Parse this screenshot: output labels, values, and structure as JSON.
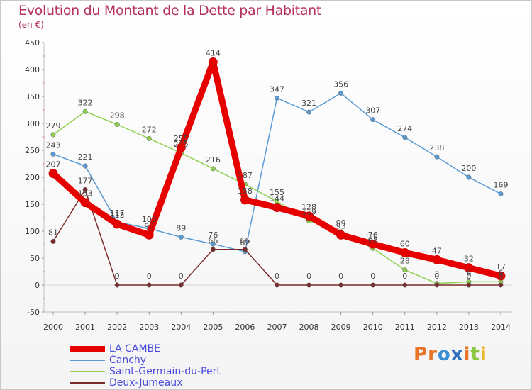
{
  "title": "Evolution du Montant de la Dette par Habitant",
  "unit_label": "(en €)",
  "logo_text": "Proxiti",
  "colors": {
    "title": "#b5315c",
    "legend_text": "#4a4adc"
  },
  "chart_data": {
    "type": "line",
    "title": "Evolution du Montant de la Dette par Habitant",
    "ylabel": "(en €)",
    "xlabel": "",
    "x": [
      "2000",
      "2001",
      "2002",
      "2003",
      "2004",
      "2005",
      "2006",
      "2007",
      "2008",
      "2009",
      "2010",
      "2011",
      "2012",
      "2013",
      "2014"
    ],
    "ylim": [
      -50,
      450
    ],
    "yticks": [
      -50,
      0,
      50,
      100,
      150,
      200,
      250,
      300,
      350,
      400,
      450
    ],
    "grid": false,
    "legend_position": "bottom-left",
    "series": [
      {
        "name": "LA CAMBE",
        "color": "#e60000",
        "emphasis": true,
        "values": [
          207,
          153,
          113,
          93,
          255,
          414,
          158,
          144,
          128,
          93,
          76,
          60,
          47,
          32,
          17
        ]
      },
      {
        "name": "Canchy",
        "color": "#5b9bd5",
        "emphasis": false,
        "values": [
          243,
          221,
          117,
          105,
          89,
          76,
          62,
          347,
          321,
          356,
          307,
          274,
          238,
          200,
          169
        ]
      },
      {
        "name": "Saint-Germain-du-Pert",
        "color": "#8fd14f",
        "emphasis": false,
        "values": [
          279,
          322,
          298,
          272,
          245,
          216,
          187,
          155,
          119,
          99,
          68,
          28,
          3,
          6,
          6
        ]
      },
      {
        "name": "Deux-Jumeaux",
        "color": "#7b2c2c",
        "emphasis": false,
        "values": [
          81,
          177,
          0,
          0,
          0,
          66,
          66,
          0,
          0,
          0,
          0,
          0,
          0,
          0,
          0
        ]
      }
    ]
  }
}
